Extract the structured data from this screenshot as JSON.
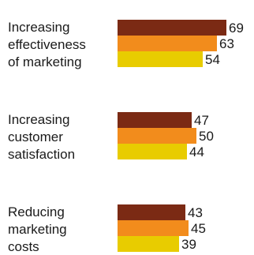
{
  "chart_data": {
    "type": "bar",
    "orientation": "horizontal",
    "categories": [
      "Increasing effectiveness of marketing",
      "Increasing customer satisfaction",
      "Reducing marketing costs"
    ],
    "category_lines": [
      [
        "Increasing",
        "effectiveness",
        "of marketing"
      ],
      [
        "Increasing",
        "customer",
        "satisfaction"
      ],
      [
        "Reducing",
        "marketing",
        "costs"
      ]
    ],
    "series": [
      {
        "color": "#7b2a14",
        "values": [
          69,
          47,
          43
        ]
      },
      {
        "color": "#f28c1c",
        "values": [
          63,
          50,
          45
        ]
      },
      {
        "color": "#e8cc00",
        "values": [
          54,
          44,
          39
        ]
      }
    ],
    "xlim": [
      0,
      69
    ],
    "grid": false,
    "legend": "none",
    "data_labels": true
  }
}
